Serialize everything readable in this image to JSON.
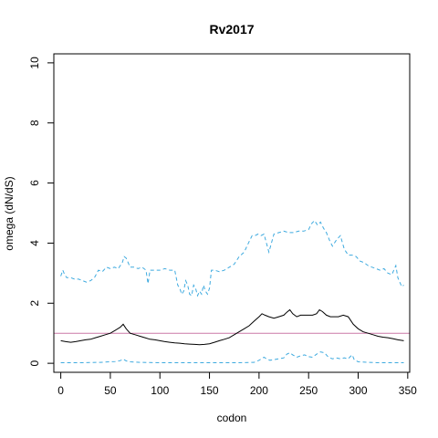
{
  "chart_data": {
    "type": "line",
    "title": "Rv2017",
    "xlabel": "codon",
    "ylabel": "omega (dN/dS)",
    "xlim": [
      -7,
      352
    ],
    "ylim": [
      -0.3,
      10.3
    ],
    "x_ticks": [
      0,
      50,
      100,
      150,
      200,
      250,
      300,
      350
    ],
    "y_ticks": [
      0,
      2,
      4,
      6,
      8,
      10
    ],
    "grid": false,
    "reference_line": {
      "y": 1,
      "color": "#cc79a7"
    },
    "colors": {
      "median": "#000000",
      "bounds": "#3eaadf"
    },
    "series": [
      {
        "style": "dashed",
        "x": [
          0,
          2,
          4,
          6,
          10,
          14,
          18,
          22,
          26,
          30,
          34,
          38,
          42,
          46,
          50,
          54,
          58,
          62,
          64,
          66,
          70,
          74,
          78,
          82,
          86,
          88,
          90,
          95,
          100,
          105,
          110,
          115,
          118,
          120,
          122,
          124,
          126,
          128,
          130,
          132,
          134,
          136,
          138,
          140,
          142,
          144,
          146,
          148,
          150,
          152,
          155,
          160,
          165,
          170,
          175,
          180,
          185,
          190,
          193,
          196,
          199,
          202,
          205,
          210,
          215,
          220,
          225,
          230,
          235,
          240,
          245,
          250,
          253,
          256,
          259,
          262,
          265,
          268,
          271,
          274,
          278,
          282,
          286,
          290,
          294,
          298,
          302,
          306,
          310,
          314,
          318,
          322,
          326,
          330,
          334,
          338,
          340,
          342,
          344,
          346
        ],
        "values": [
          2.9,
          3.1,
          2.95,
          2.85,
          2.85,
          2.8,
          2.8,
          2.75,
          2.7,
          2.75,
          2.85,
          3.1,
          3.05,
          3.2,
          3.15,
          3.2,
          3.15,
          3.35,
          3.55,
          3.5,
          3.2,
          3.2,
          3.15,
          3.2,
          3.1,
          2.65,
          3.1,
          3.1,
          3.1,
          3.15,
          3.1,
          3.1,
          2.6,
          2.5,
          2.3,
          2.4,
          2.75,
          2.6,
          2.3,
          2.25,
          2.6,
          2.5,
          2.25,
          2.4,
          2.3,
          2.6,
          2.4,
          2.3,
          2.5,
          3.1,
          3.1,
          3.05,
          3.1,
          3.2,
          3.3,
          3.55,
          3.7,
          4.05,
          4.25,
          4.25,
          4.3,
          4.25,
          4.3,
          3.7,
          4.3,
          4.35,
          4.4,
          4.35,
          4.35,
          4.4,
          4.4,
          4.45,
          4.65,
          4.75,
          4.6,
          4.7,
          4.5,
          4.35,
          4.1,
          3.9,
          4.1,
          4.25,
          3.8,
          3.6,
          3.6,
          3.55,
          3.4,
          3.35,
          3.25,
          3.2,
          3.15,
          3.1,
          3.15,
          3.0,
          2.95,
          3.25,
          2.85,
          2.7,
          2.55,
          2.6
        ]
      },
      {
        "style": "solid",
        "x": [
          0,
          5,
          10,
          15,
          20,
          25,
          30,
          35,
          40,
          45,
          50,
          55,
          60,
          63,
          66,
          70,
          75,
          80,
          85,
          90,
          95,
          100,
          105,
          110,
          115,
          120,
          125,
          130,
          135,
          140,
          145,
          150,
          155,
          160,
          165,
          170,
          175,
          180,
          185,
          190,
          195,
          200,
          203,
          206,
          210,
          215,
          220,
          225,
          228,
          231,
          234,
          238,
          242,
          246,
          250,
          254,
          258,
          261,
          264,
          268,
          272,
          276,
          280,
          285,
          290,
          295,
          300,
          305,
          310,
          315,
          320,
          325,
          330,
          335,
          340,
          346
        ],
        "values": [
          0.75,
          0.72,
          0.7,
          0.72,
          0.75,
          0.78,
          0.8,
          0.85,
          0.9,
          0.95,
          1.0,
          1.1,
          1.2,
          1.3,
          1.15,
          1.0,
          0.95,
          0.9,
          0.85,
          0.8,
          0.78,
          0.75,
          0.72,
          0.7,
          0.68,
          0.67,
          0.65,
          0.64,
          0.63,
          0.62,
          0.63,
          0.65,
          0.7,
          0.75,
          0.8,
          0.85,
          0.95,
          1.05,
          1.15,
          1.25,
          1.4,
          1.55,
          1.65,
          1.6,
          1.55,
          1.5,
          1.55,
          1.6,
          1.7,
          1.78,
          1.65,
          1.55,
          1.6,
          1.6,
          1.6,
          1.6,
          1.65,
          1.78,
          1.72,
          1.6,
          1.55,
          1.55,
          1.55,
          1.6,
          1.55,
          1.3,
          1.15,
          1.05,
          1.0,
          0.95,
          0.9,
          0.87,
          0.85,
          0.82,
          0.78,
          0.75
        ]
      },
      {
        "style": "dashed",
        "x": [
          0,
          20,
          40,
          55,
          60,
          63,
          66,
          70,
          80,
          100,
          120,
          140,
          160,
          180,
          195,
          200,
          205,
          208,
          211,
          215,
          220,
          225,
          228,
          231,
          234,
          238,
          242,
          246,
          250,
          254,
          258,
          262,
          266,
          270,
          274,
          278,
          282,
          286,
          290,
          292,
          294,
          296,
          300,
          310,
          320,
          330,
          340,
          346
        ],
        "values": [
          0.02,
          0.02,
          0.03,
          0.06,
          0.09,
          0.14,
          0.08,
          0.05,
          0.03,
          0.02,
          0.02,
          0.02,
          0.02,
          0.02,
          0.03,
          0.1,
          0.2,
          0.14,
          0.1,
          0.12,
          0.15,
          0.18,
          0.3,
          0.35,
          0.28,
          0.2,
          0.25,
          0.28,
          0.22,
          0.2,
          0.3,
          0.38,
          0.35,
          0.2,
          0.15,
          0.18,
          0.15,
          0.18,
          0.15,
          0.22,
          0.28,
          0.12,
          0.05,
          0.03,
          0.02,
          0.02,
          0.02,
          0.02
        ]
      }
    ]
  }
}
